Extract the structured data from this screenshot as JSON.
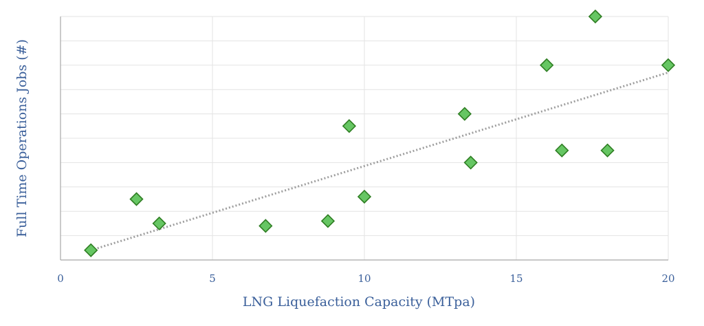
{
  "chart_data": {
    "type": "scatter",
    "title": "",
    "xlabel": "LNG Liquefaction Capacity (MTpa)",
    "ylabel": "Full Time Operations Jobs (#)",
    "xlim": [
      0,
      20
    ],
    "ylim": [
      0,
      10
    ],
    "x_ticks": [
      0,
      5,
      10,
      15,
      20
    ],
    "y_gridlines": [
      1,
      2,
      3,
      4,
      5,
      6,
      7,
      8,
      9,
      10
    ],
    "y_tick_labels_shown": false,
    "grid": true,
    "marker": "diamond",
    "colors": {
      "marker_fill": "#66c663",
      "marker_stroke": "#2e7d22",
      "trendline": "#9e9e9e",
      "text": "#3a5f9a"
    },
    "trendline": {
      "style": "dotted",
      "x": [
        1,
        20
      ],
      "y": [
        0.4,
        7.7
      ]
    },
    "series": [
      {
        "x": [
          1.0,
          2.5,
          3.25,
          6.75,
          8.8,
          9.5,
          10.0,
          13.3,
          13.5,
          16.0,
          16.5,
          17.6,
          18.0,
          20.0
        ],
        "y": [
          0.4,
          2.5,
          1.5,
          1.4,
          1.6,
          5.5,
          2.6,
          6.0,
          4.0,
          8.0,
          4.5,
          10.0,
          4.5,
          8.0
        ]
      }
    ]
  }
}
